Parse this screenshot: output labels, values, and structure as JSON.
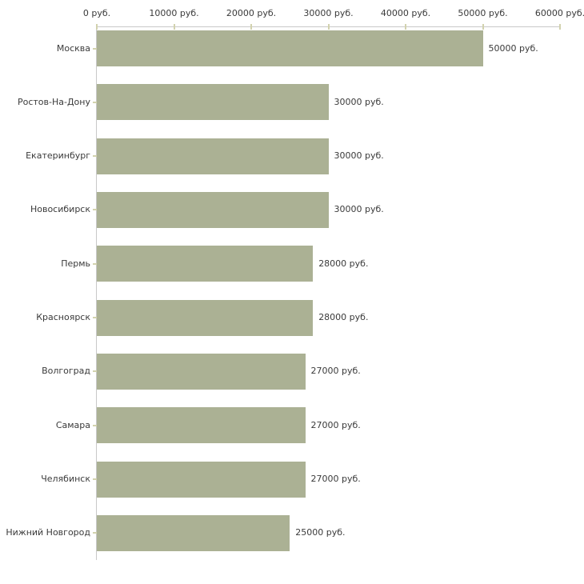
{
  "chart_data": {
    "type": "bar",
    "orientation": "horizontal",
    "title": "",
    "xlabel": "",
    "ylabel": "",
    "xlim": [
      0,
      60000
    ],
    "grid": false,
    "legend": "none",
    "unit_suffix": " руб.",
    "x_ticks": [
      {
        "value": 0,
        "label": "0 руб."
      },
      {
        "value": 10000,
        "label": "10000 руб."
      },
      {
        "value": 20000,
        "label": "20000 руб."
      },
      {
        "value": 30000,
        "label": "30000 руб."
      },
      {
        "value": 40000,
        "label": "40000 руб."
      },
      {
        "value": 50000,
        "label": "50000 руб."
      },
      {
        "value": 60000,
        "label": "60000 руб."
      }
    ],
    "categories": [
      "Москва",
      "Ростов-На-Дону",
      "Екатеринбург",
      "Новосибирск",
      "Пермь",
      "Красноярск",
      "Волгоград",
      "Самара",
      "Челябинск",
      "Нижний Новгород"
    ],
    "values": [
      50000,
      30000,
      30000,
      30000,
      28000,
      28000,
      27000,
      27000,
      27000,
      25000
    ],
    "value_labels": [
      "50000 руб.",
      "30000 руб.",
      "30000 руб.",
      "30000 руб.",
      "28000 руб.",
      "28000 руб.",
      "27000 руб.",
      "27000 руб.",
      "27000 руб.",
      "25000 руб."
    ],
    "colors": {
      "bar": "#abb194",
      "axis_line": "#c9c9c9",
      "tick_mark": "#d2d2ae",
      "text": "#3a3a3a",
      "background": "#ffffff"
    }
  }
}
